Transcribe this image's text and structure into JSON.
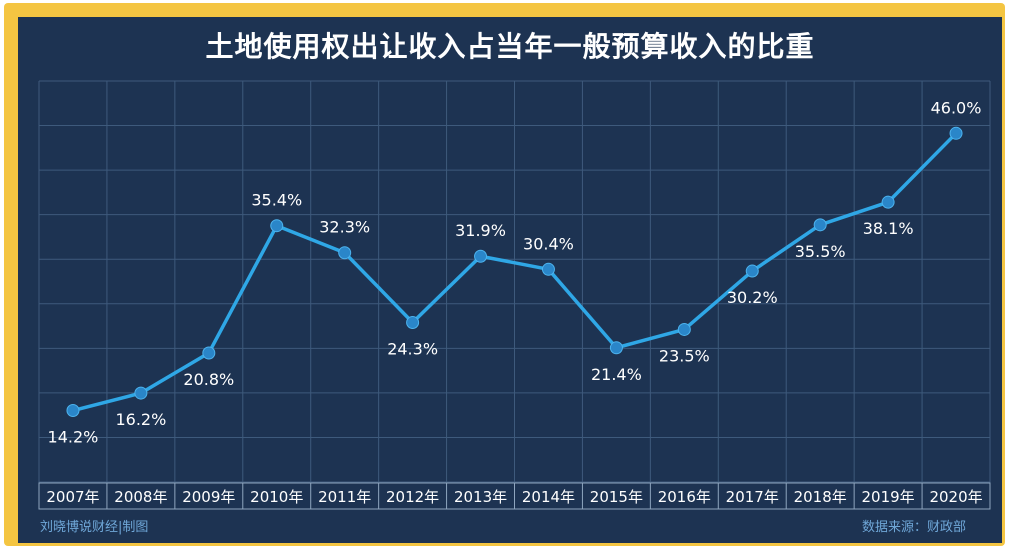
{
  "chart_data": {
    "type": "line",
    "title": "土地使用权出让收入占当年一般预算收入的比重",
    "categories": [
      "2007年",
      "2008年",
      "2009年",
      "2010年",
      "2011年",
      "2012年",
      "2013年",
      "2014年",
      "2015年",
      "2016年",
      "2017年",
      "2018年",
      "2019年",
      "2020年"
    ],
    "series": [
      {
        "values": [
          14.2,
          16.2,
          20.8,
          35.4,
          32.3,
          24.3,
          31.9,
          30.4,
          21.4,
          23.5,
          30.2,
          35.5,
          38.1,
          46.0
        ],
        "labels": [
          "14.2%",
          "16.2%",
          "20.8%",
          "35.4%",
          "32.3%",
          "24.3%",
          "31.9%",
          "30.4%",
          "21.4%",
          "23.5%",
          "30.2%",
          "35.5%",
          "38.1%",
          "46.0%"
        ]
      }
    ],
    "ylim": [
      6,
      52
    ],
    "grid": true,
    "colors": {
      "line": "#2fa7e6",
      "marker": "#2a86c9",
      "grid": "#3e5a7c",
      "label": "#ffffff"
    }
  },
  "footer": {
    "credit": "刘晓博说财经|制图",
    "source": "数据来源：财政部"
  }
}
